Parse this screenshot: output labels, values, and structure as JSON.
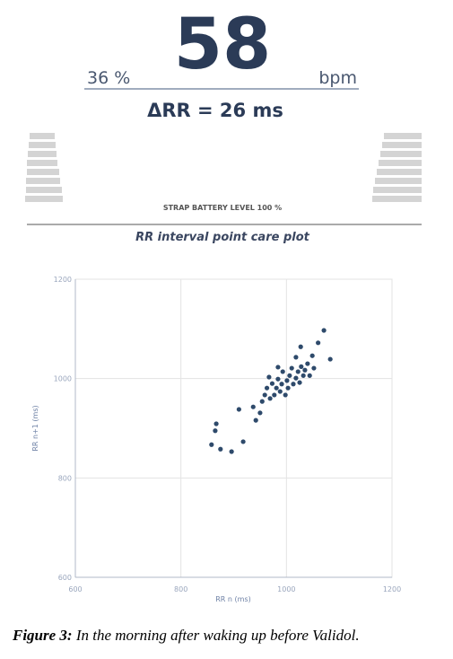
{
  "header": {
    "heart_rate": "58",
    "percent": "36 %",
    "unit": "bpm",
    "delta_rr": "ΔRR = 26 ms",
    "battery": "STRAP BATTERY LEVEL 100 %",
    "plot_title": "RR interval point care plot"
  },
  "chart_data": {
    "type": "scatter",
    "x_label": "RR n (ms)",
    "y_label": "RR n+1 (ms)",
    "color": "#2e4a6b",
    "grid": true,
    "xlim": [
      600,
      1200
    ],
    "ylim": [
      600,
      1200
    ],
    "xticks": [
      600,
      800,
      1000,
      1200
    ],
    "yticks": [
      600,
      800,
      1000,
      1200
    ],
    "x": [
      867,
      865,
      858,
      875,
      896,
      918,
      910,
      937,
      942,
      950,
      954,
      959,
      963,
      969,
      973,
      977,
      981,
      984,
      988,
      991,
      993,
      998,
      1001,
      1003,
      1006,
      1010,
      1013,
      1018,
      1022,
      1025,
      1028,
      1032,
      1035,
      1040,
      1044,
      1049,
      1052,
      1027,
      1060,
      1071,
      1083,
      1018,
      984,
      967
    ],
    "y": [
      909,
      895,
      867,
      858,
      853,
      873,
      938,
      943,
      916,
      931,
      954,
      967,
      981,
      960,
      990,
      967,
      981,
      999,
      974,
      989,
      1014,
      967,
      996,
      981,
      1006,
      1021,
      989,
      1001,
      1014,
      992,
      1024,
      1006,
      1017,
      1030,
      1006,
      1046,
      1021,
      1064,
      1072,
      1097,
      1039,
      1043,
      1023,
      1003
    ]
  },
  "caption": {
    "label": "Figure 3:",
    "text": "In the morning after waking up before Validol."
  }
}
